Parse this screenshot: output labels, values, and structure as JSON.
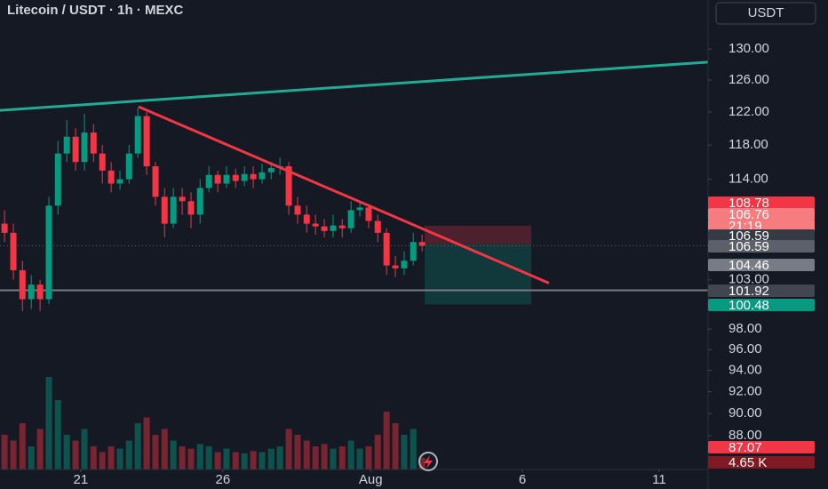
{
  "chart_data": {
    "type": "candlestick",
    "title": "Litecoin / USDT · 1h · MEXC",
    "currency": "USDT",
    "log": true,
    "up_color": "#089981",
    "down_color": "#f23645",
    "xlim": [
      18.16,
      43.07
    ],
    "xticks": [
      21,
      26,
      {
        "value": 31.2,
        "label": "Aug"
      },
      {
        "value": 36.54,
        "label": "6"
      },
      {
        "value": 41.35,
        "label": "11"
      }
    ],
    "ylim": [
      85.06,
      136.6
    ],
    "yticks": [
      {
        "value": 130,
        "label": "130.00"
      },
      {
        "value": 126,
        "label": "126.00"
      },
      {
        "value": 122,
        "label": "122.00"
      },
      {
        "value": 118,
        "label": "118.00"
      },
      {
        "value": 114,
        "label": "114.00"
      },
      {
        "value": 103,
        "label": "103.00"
      },
      {
        "value": 98,
        "label": "98.00"
      },
      {
        "value": 96,
        "label": "96.00"
      },
      {
        "value": 94,
        "label": "94.00"
      },
      {
        "value": 92,
        "label": "92.00"
      },
      {
        "value": 90,
        "label": "90.00"
      },
      {
        "value": 88,
        "label": "88.00"
      }
    ],
    "x": [
      18.32,
      18.63,
      18.95,
      19.26,
      19.57,
      19.88,
      20.2,
      20.51,
      20.82,
      21.13,
      21.45,
      21.76,
      22.07,
      22.38,
      22.7,
      23.01,
      23.32,
      23.63,
      23.95,
      24.26,
      24.57,
      24.88,
      25.2,
      25.51,
      25.82,
      26.13,
      26.45,
      26.76,
      27.07,
      27.38,
      27.7,
      28.01,
      28.32,
      28.63,
      28.95,
      29.26,
      29.57,
      29.88,
      30.2,
      30.51,
      30.82,
      31.13,
      31.45,
      31.76,
      32.07,
      32.38,
      32.7,
      33.01
    ],
    "open": [
      109,
      108,
      104,
      101,
      102.5,
      101,
      111,
      117,
      119,
      116,
      119.5,
      117,
      115,
      113.5,
      114,
      117,
      121.5,
      115.5,
      112,
      109,
      112,
      111.5,
      110,
      113,
      114.5,
      113.5,
      114.5,
      113.8,
      114.6,
      114,
      114.8,
      115.3,
      115.5,
      111,
      110,
      109,
      108.7,
      108.2,
      108.8,
      108.5,
      110.5,
      110.8,
      109.3,
      108,
      104.5,
      104.2,
      105,
      107
    ],
    "high": [
      110.5,
      109,
      105,
      103.5,
      103,
      112,
      118.5,
      121,
      120,
      121.8,
      120.5,
      118,
      116,
      115,
      118,
      122.5,
      122,
      116,
      113,
      113,
      113,
      112.5,
      114,
      115.5,
      115,
      115.5,
      115.2,
      115.5,
      115.5,
      115.8,
      116,
      116.5,
      116,
      112,
      111,
      110,
      109.5,
      110,
      109.5,
      111.5,
      111.5,
      111.2,
      110,
      108.5,
      105.5,
      106,
      108,
      107.8
    ],
    "low": [
      107,
      103,
      99.8,
      100,
      99.8,
      100.5,
      110,
      116,
      115,
      115,
      116,
      113.5,
      112.5,
      112.8,
      113.5,
      116.5,
      114.5,
      111,
      107.5,
      108.5,
      110,
      108.5,
      109,
      112.5,
      112.5,
      113,
      113,
      113.2,
      113,
      113.5,
      114,
      114.5,
      110,
      109,
      108,
      107.8,
      107.5,
      107.5,
      107.5,
      108,
      109.8,
      108.5,
      107,
      103.5,
      103.3,
      103.5,
      104.5,
      106
    ],
    "close": [
      108,
      104,
      101,
      102.5,
      101,
      111,
      117,
      119,
      116,
      119.5,
      117,
      115,
      113.5,
      114,
      117,
      121.5,
      115.5,
      112,
      109,
      112,
      111.5,
      110,
      113,
      114.5,
      113.5,
      114.5,
      113.8,
      114.6,
      114,
      114.8,
      115.3,
      115.5,
      111,
      110,
      109,
      108.7,
      108.2,
      108.8,
      108.5,
      110.5,
      110.8,
      109.3,
      108,
      104.5,
      104.2,
      105,
      107,
      106.6
    ],
    "volume": {
      "vlim": [
        0,
        100
      ],
      "values": [
        30,
        25,
        40,
        20,
        35,
        80,
        60,
        30,
        25,
        35,
        20,
        15,
        20,
        18,
        25,
        40,
        45,
        30,
        35,
        25,
        20,
        18,
        22,
        20,
        15,
        18,
        15,
        14,
        16,
        15,
        18,
        20,
        35,
        30,
        25,
        20,
        22,
        18,
        20,
        25,
        18,
        20,
        30,
        50,
        40,
        30,
        35,
        10
      ]
    },
    "trendlines": [
      {
        "color": "#22ab94",
        "x": [
          18.16,
          43.07
        ],
        "values": [
          122.2,
          128.3
        ]
      },
      {
        "color": "#f23645",
        "x": [
          23.07,
          37.44
        ],
        "values": [
          122.6,
          102.7
        ]
      }
    ],
    "hline": {
      "value": 101.92,
      "color": "#787b86"
    },
    "last_price": 106.59,
    "position": {
      "x": [
        33.1,
        36.85
      ],
      "entry": 106.76,
      "stop": 108.78,
      "target": 100.48
    },
    "axis_labels": [
      {
        "text": "108.78",
        "color": "#f23645"
      },
      {
        "text": "106.76",
        "color": "#f77c80"
      },
      {
        "text": "21:19",
        "color": "#f77c80"
      },
      {
        "text": "106.59",
        "color": "#363a45"
      },
      {
        "text": "106.59",
        "color": "#5d606b"
      },
      {
        "text": "104.46",
        "color": "#787b86"
      },
      {
        "text": "101.92",
        "color": "#434651"
      },
      {
        "text": "100.48",
        "color": "#089981"
      },
      {
        "text": "87.07",
        "color": "#f23645"
      },
      {
        "text": "4.65 K",
        "color": "#801922"
      }
    ]
  }
}
